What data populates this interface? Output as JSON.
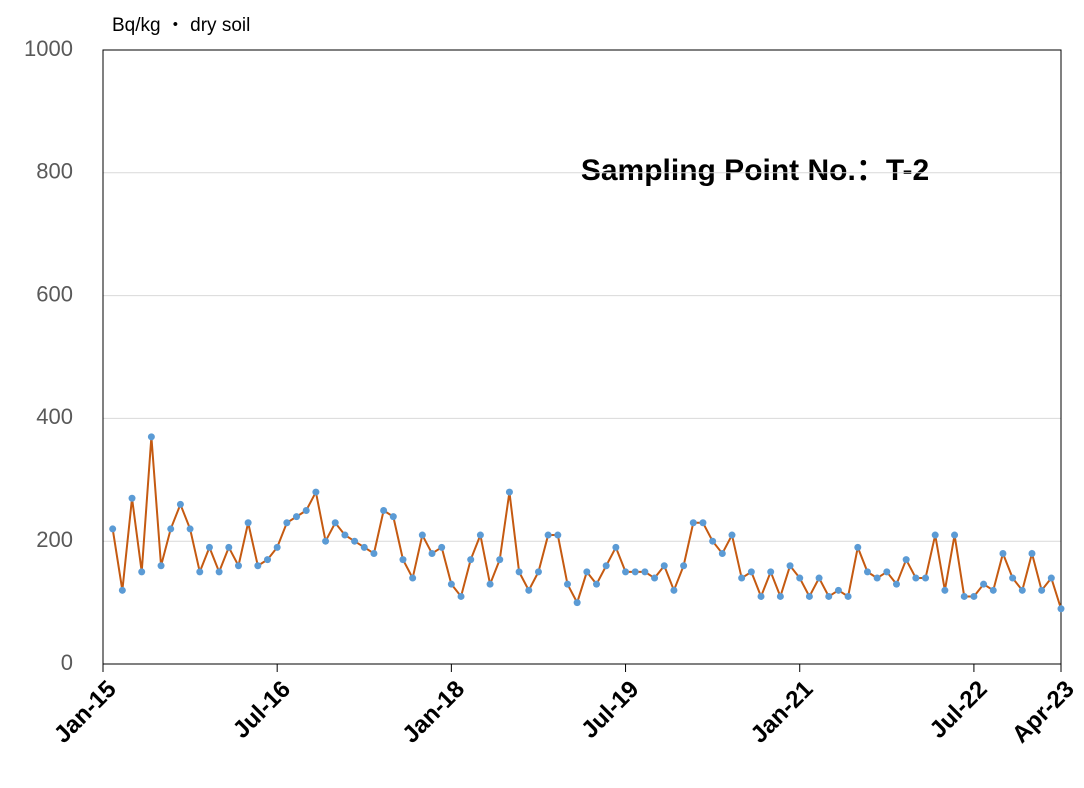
{
  "chart_data": {
    "type": "line",
    "title": "Sampling Point No.：T-2",
    "y_label": "Bq/kg ・ dry soil",
    "x": [
      "2015-02",
      "2015-03",
      "2015-04",
      "2015-05",
      "2015-06",
      "2015-07",
      "2015-08",
      "2015-09",
      "2015-10",
      "2015-11",
      "2015-12",
      "2016-01",
      "2016-02",
      "2016-03",
      "2016-04",
      "2016-05",
      "2016-06",
      "2016-07",
      "2016-08",
      "2016-09",
      "2016-10",
      "2016-11",
      "2016-12",
      "2017-01",
      "2017-02",
      "2017-03",
      "2017-04",
      "2017-05",
      "2017-06",
      "2017-07",
      "2017-08",
      "2017-09",
      "2017-10",
      "2017-11",
      "2017-12",
      "2018-01",
      "2018-02",
      "2018-03",
      "2018-04",
      "2018-05",
      "2018-06",
      "2018-07",
      "2018-08",
      "2018-09",
      "2018-10",
      "2018-11",
      "2018-12",
      "2019-01",
      "2019-02",
      "2019-03",
      "2019-04",
      "2019-05",
      "2019-06",
      "2019-07",
      "2019-08",
      "2019-09",
      "2019-10",
      "2019-11",
      "2019-12",
      "2020-01",
      "2020-02",
      "2020-03",
      "2020-04",
      "2020-05",
      "2020-06",
      "2020-07",
      "2020-08",
      "2020-09",
      "2020-10",
      "2020-11",
      "2020-12",
      "2021-01",
      "2021-02",
      "2021-03",
      "2021-04",
      "2021-05",
      "2021-06",
      "2021-07",
      "2021-08",
      "2021-09",
      "2021-10",
      "2021-11",
      "2021-12",
      "2022-01",
      "2022-02",
      "2022-03",
      "2022-04",
      "2022-05",
      "2022-06",
      "2022-07",
      "2022-08",
      "2022-09",
      "2022-10",
      "2022-11",
      "2022-12",
      "2023-01",
      "2023-02",
      "2023-03",
      "2023-04"
    ],
    "series": [
      {
        "name": "T-2",
        "color": "#c55a11",
        "marker_color": "#5b9bd5",
        "values": [
          220,
          120,
          270,
          150,
          370,
          160,
          220,
          260,
          220,
          150,
          190,
          150,
          190,
          160,
          230,
          160,
          170,
          190,
          230,
          240,
          250,
          280,
          200,
          230,
          210,
          200,
          190,
          180,
          250,
          240,
          170,
          140,
          210,
          180,
          190,
          130,
          110,
          170,
          210,
          130,
          170,
          280,
          150,
          120,
          150,
          210,
          210,
          130,
          100,
          150,
          130,
          160,
          190,
          150,
          150,
          150,
          140,
          160,
          120,
          160,
          230,
          230,
          200,
          180,
          210,
          140,
          150,
          110,
          150,
          110,
          160,
          140,
          110,
          140,
          110,
          120,
          110,
          190,
          150,
          140,
          150,
          130,
          170,
          140,
          140,
          210,
          120,
          210,
          110,
          110,
          130,
          120,
          180,
          140,
          120,
          180,
          120,
          140,
          90
        ]
      }
    ],
    "xlim": [
      "2015-01",
      "2023-04"
    ],
    "xticks": [
      {
        "value": "2015-01",
        "label": "Jan-15"
      },
      {
        "value": "2016-07",
        "label": "Jul-16"
      },
      {
        "value": "2018-01",
        "label": "Jan-18"
      },
      {
        "value": "2019-07",
        "label": "Jul-19"
      },
      {
        "value": "2021-01",
        "label": "Jan-21"
      },
      {
        "value": "2022-07",
        "label": "Jul-22"
      },
      {
        "value": "2023-04",
        "label": "Apr-23"
      }
    ],
    "ylim": [
      0,
      1000
    ],
    "yticks": [
      0,
      200,
      400,
      600,
      800,
      1000
    ],
    "grid": true
  }
}
